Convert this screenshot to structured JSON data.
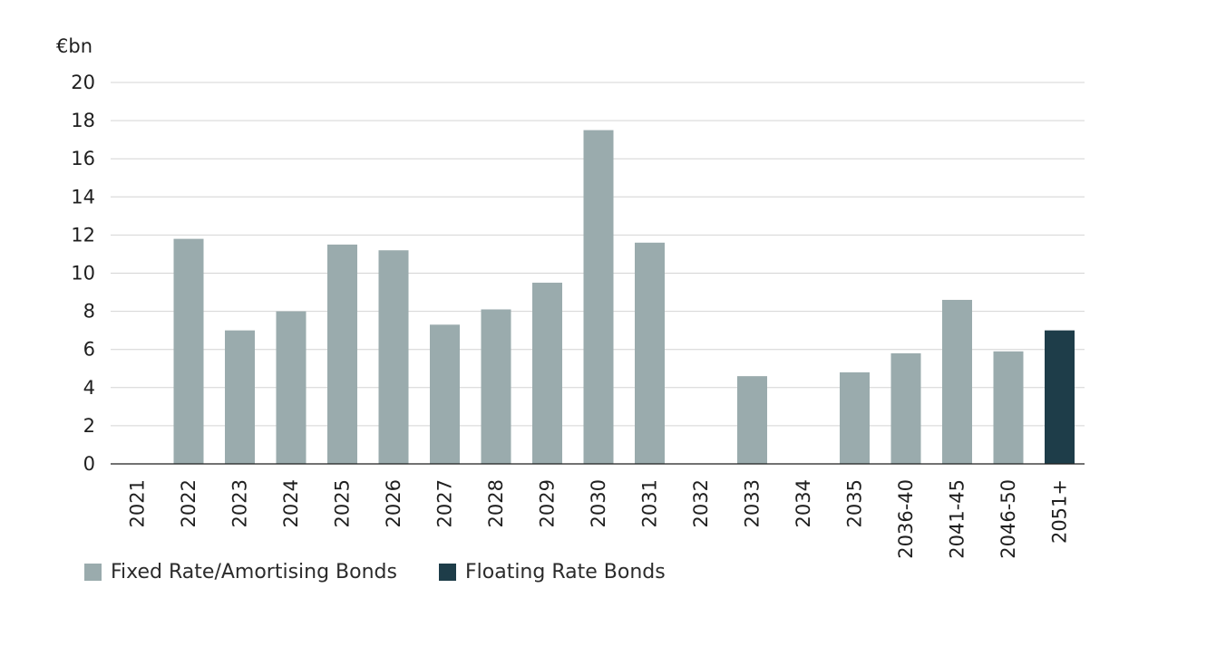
{
  "chart_data": {
    "type": "bar",
    "ylabel": "€bn",
    "ylim": [
      0,
      20
    ],
    "yticks": [
      "0",
      "2",
      "4",
      "6",
      "8",
      "10",
      "12",
      "14",
      "16",
      "18",
      "20"
    ],
    "grid": true,
    "legend_position": "bottom-left",
    "categories": [
      "2021",
      "2022",
      "2023",
      "2024",
      "2025",
      "2026",
      "2027",
      "2028",
      "2029",
      "2030",
      "2031",
      "2032",
      "2033",
      "2034",
      "2035",
      "2036-40",
      "2041-45",
      "2046-50",
      "2051+"
    ],
    "series": [
      {
        "name": "Fixed Rate/Amortising Bonds",
        "color": "#9aabad",
        "values": [
          0,
          11.8,
          7.0,
          8.0,
          11.5,
          11.2,
          7.3,
          8.1,
          9.5,
          17.5,
          11.6,
          0,
          4.6,
          0,
          4.8,
          5.8,
          8.6,
          5.9,
          0
        ]
      },
      {
        "name": "Floating Rate Bonds",
        "color": "#1e3d49",
        "values": [
          0,
          0,
          0,
          0,
          0,
          0,
          0,
          0,
          0,
          0,
          0,
          0,
          0,
          0,
          0,
          0,
          0,
          0,
          7.0
        ]
      }
    ]
  }
}
